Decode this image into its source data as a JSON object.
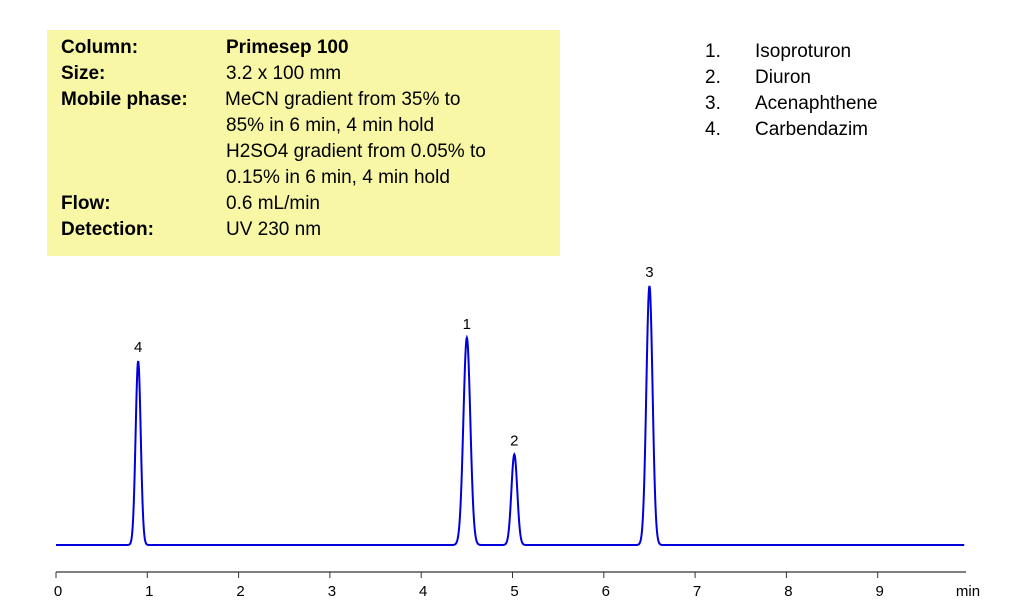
{
  "info": {
    "rows": [
      {
        "label": "Column:",
        "value": "Primesep 100",
        "bold": true
      },
      {
        "label": "Size:",
        "value": "3.2 x 100 mm"
      },
      {
        "label": "Mobile phase:",
        "value": "MeCN gradient from 35% to"
      },
      {
        "label": "",
        "value": "85% in 6 min, 4 min hold"
      },
      {
        "label": "",
        "value": "H2SO4 gradient from 0.05% to"
      },
      {
        "label": "",
        "value": "0.15% in 6 min, 4 min hold"
      },
      {
        "label": "Flow:",
        "value": "0.6 mL/min"
      },
      {
        "label": "Detection:",
        "value": "UV 230 nm"
      }
    ]
  },
  "legend": [
    {
      "num": "1.",
      "name": "Isoproturon"
    },
    {
      "num": "2.",
      "name": "Diuron"
    },
    {
      "num": "3.",
      "name": "Acenaphthene"
    },
    {
      "num": "4.",
      "name": "Carbendazim"
    }
  ],
  "chart_data": {
    "type": "line",
    "title": "",
    "xlabel": "min",
    "ylabel": "",
    "xlim": [
      0,
      10
    ],
    "ylim": [
      0,
      100
    ],
    "xticks": [
      "0",
      "1",
      "2",
      "3",
      "4",
      "5",
      "6",
      "7",
      "8",
      "9"
    ],
    "grid": false,
    "line_color": "#0000dd",
    "peaks": [
      {
        "label": "4",
        "rt": 0.9,
        "height": 71,
        "width": 0.028
      },
      {
        "label": "1",
        "rt": 4.5,
        "height": 80,
        "width": 0.038
      },
      {
        "label": "2",
        "rt": 5.02,
        "height": 35,
        "width": 0.032
      },
      {
        "label": "3",
        "rt": 6.5,
        "height": 100,
        "width": 0.034
      }
    ]
  }
}
